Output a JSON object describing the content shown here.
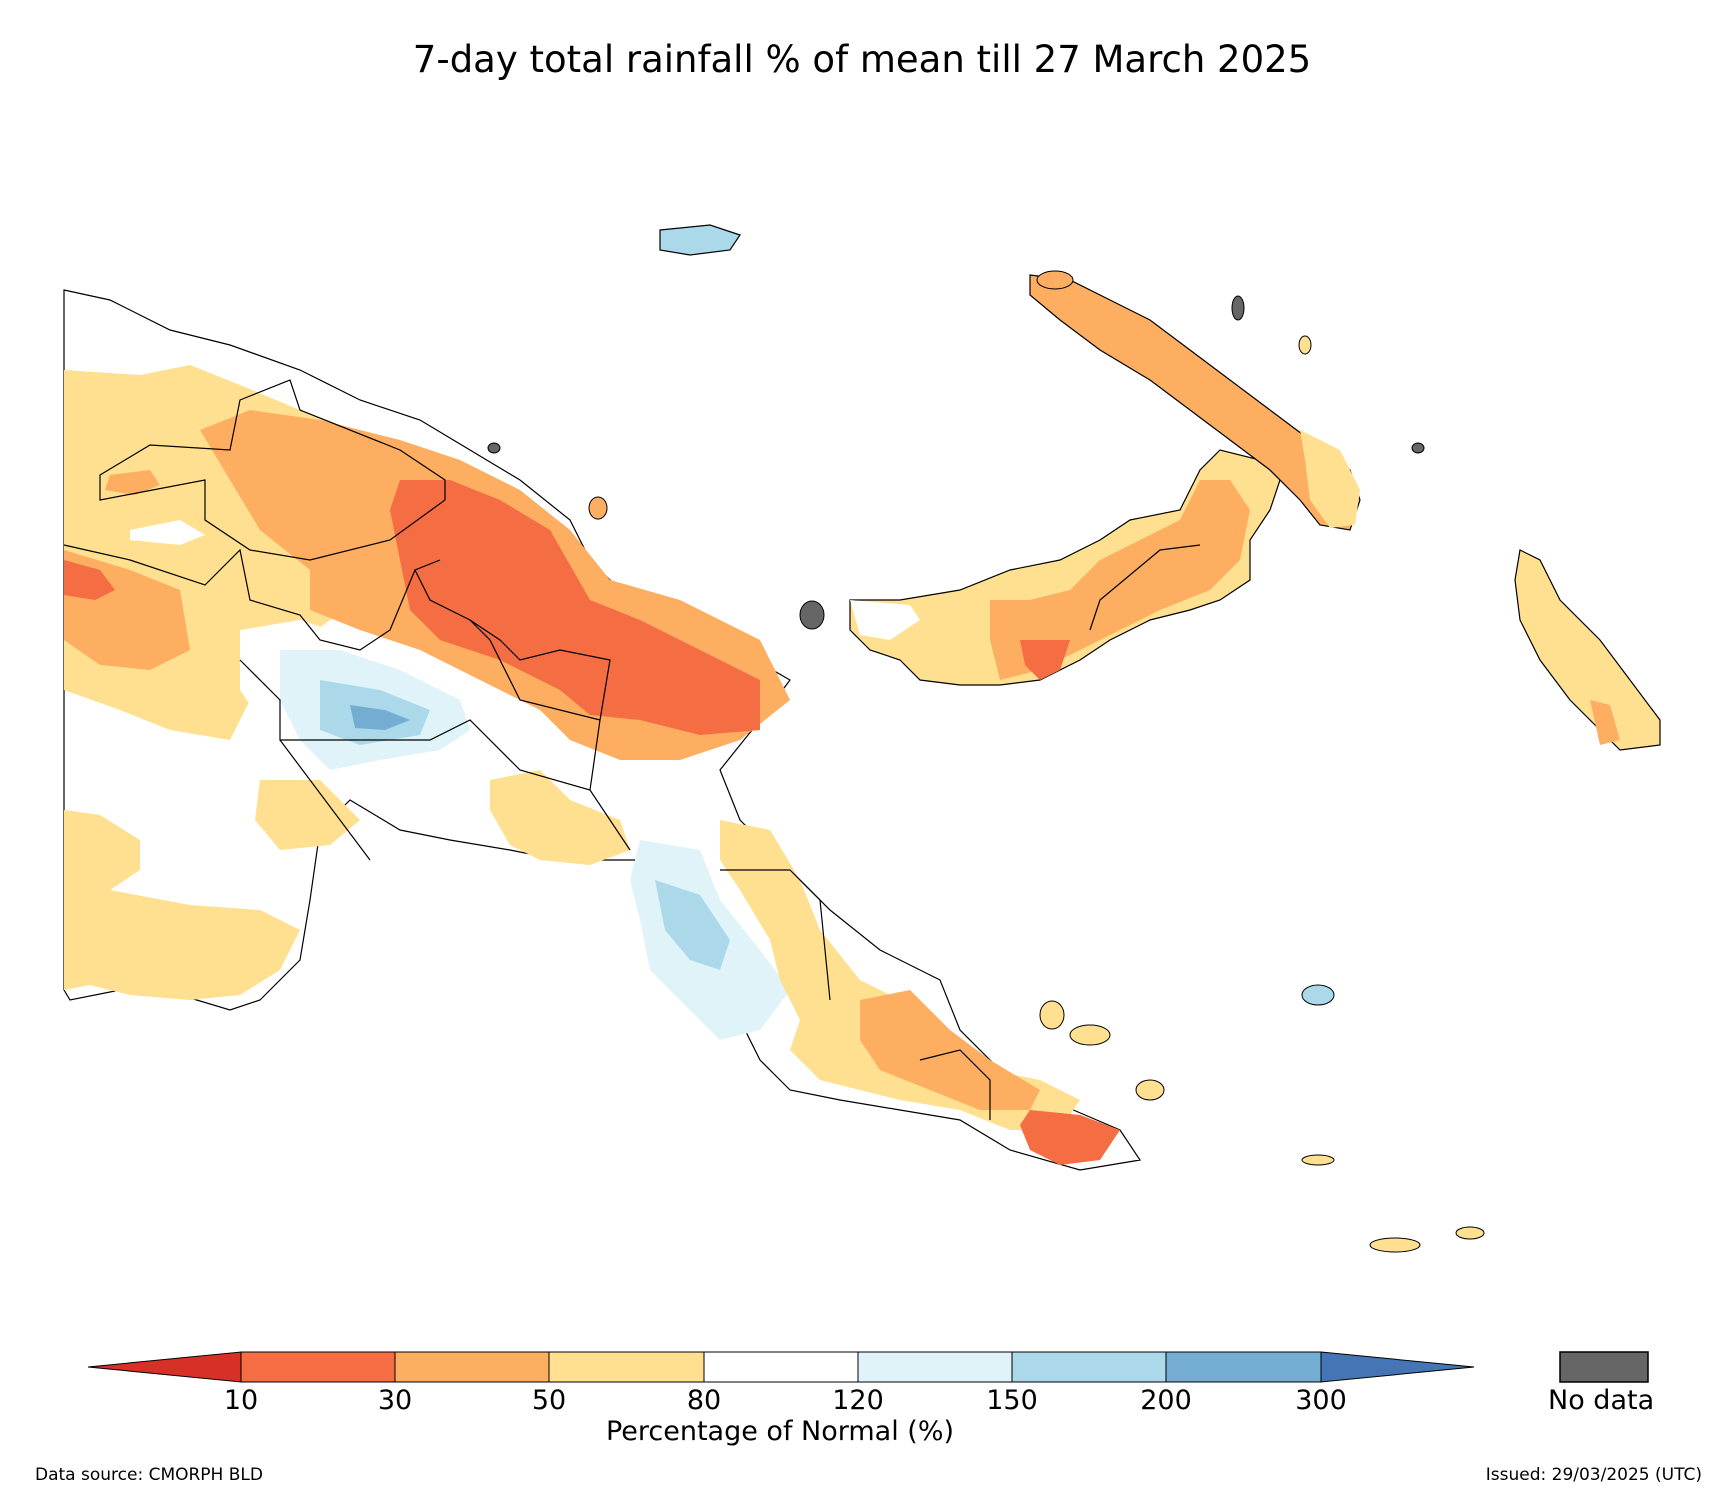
{
  "title": "7-day total rainfall % of mean till 27 March 2025",
  "colorbar": {
    "label": "Percentage of Normal (%)",
    "ticks": [
      "10",
      "30",
      "50",
      "80",
      "120",
      "150",
      "200",
      "300"
    ],
    "bins": [
      {
        "range": "<10",
        "color": "#d73027"
      },
      {
        "range": "10-30",
        "color": "#f46d43"
      },
      {
        "range": "30-50",
        "color": "#fdae61"
      },
      {
        "range": "50-80",
        "color": "#fee090"
      },
      {
        "range": "80-120",
        "color": "#ffffff"
      },
      {
        "range": "120-150",
        "color": "#e0f3f8"
      },
      {
        "range": "150-200",
        "color": "#abd9e9"
      },
      {
        "range": "200-300",
        "color": "#74add1"
      },
      {
        "range": ">300",
        "color": "#4575b4"
      }
    ],
    "no_data_label": "No data",
    "no_data_color": "#666666"
  },
  "footer": {
    "source": "Data source: CMORPH BLD",
    "issued": "Issued: 29/03/2025 (UTC)"
  }
}
